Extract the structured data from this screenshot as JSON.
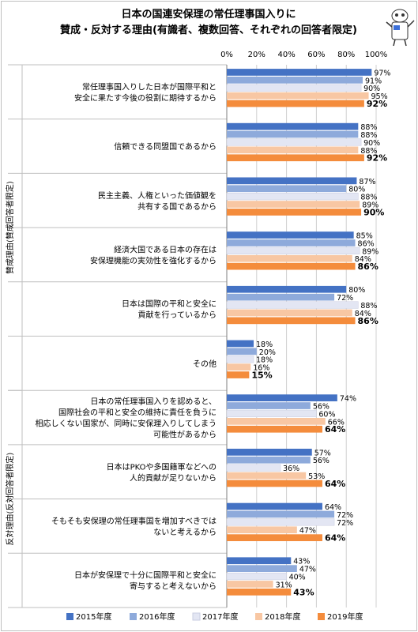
{
  "chart_data": {
    "type": "bar",
    "orientation": "horizontal",
    "title": [
      "日本の国連安保理の常任理事国入りに",
      "賛成・反対する理由(有識者、複数回答、それぞれの回答者限定)"
    ],
    "xlim": [
      0,
      100
    ],
    "xticks": [
      "0%",
      "20%",
      "40%",
      "60%",
      "80%",
      "100%"
    ],
    "groups": [
      {
        "label": "賛成理由(賛成回答者限定)",
        "rows": [
          0,
          5
        ]
      },
      {
        "label": "反対理由(反対回答者限定)",
        "rows": [
          6,
          9
        ]
      }
    ],
    "categories": [
      [
        "常任理事国入りした日本が国際平和と",
        "安全に果たす今後の役割に期待するから"
      ],
      [
        "信頼できる同盟国であるから"
      ],
      [
        "民主主義、人権といった価値観を",
        "共有する国であるから"
      ],
      [
        "経済大国である日本の存在は",
        "安保理機能の実効性を強化するから"
      ],
      [
        "日本は国際の平和と安全に",
        "貢献を行っているから"
      ],
      [
        "その他"
      ],
      [
        "日本の常任理事国入りを認めると、",
        "国際社会の平和と安全の維持に責任を負うに",
        "相応しくない国家が、同時に安保理入りしてしまう",
        "可能性があるから"
      ],
      [
        "日本はPKOや多国籍軍などへの",
        "人的貢献が足りないから"
      ],
      [
        "そもそも安保理の常任理事国を増加すべきでは",
        "ないと考えるから"
      ],
      [
        "日本が安保理で十分に国際平和と安全に",
        "寄与すると考えないから"
      ]
    ],
    "series": [
      {
        "name": "2015年度",
        "color": "#4472c4",
        "values": [
          97,
          88,
          87,
          85,
          80,
          18,
          74,
          57,
          64,
          43
        ]
      },
      {
        "name": "2016年度",
        "color": "#8eaadb",
        "values": [
          91,
          88,
          80,
          86,
          72,
          20,
          56,
          56,
          72,
          47
        ]
      },
      {
        "name": "2017年度",
        "color": "#e3e6f3",
        "values": [
          90,
          90,
          88,
          89,
          88,
          18,
          60,
          36,
          72,
          40
        ]
      },
      {
        "name": "2018年度",
        "color": "#f8c7a3",
        "values": [
          95,
          88,
          89,
          84,
          84,
          16,
          66,
          53,
          47,
          31
        ]
      },
      {
        "name": "2019年度",
        "color": "#f48c3c",
        "values": [
          92,
          92,
          90,
          86,
          86,
          15,
          64,
          64,
          64,
          43
        ]
      }
    ],
    "value_format": "{v}%",
    "legend": "bottom"
  }
}
